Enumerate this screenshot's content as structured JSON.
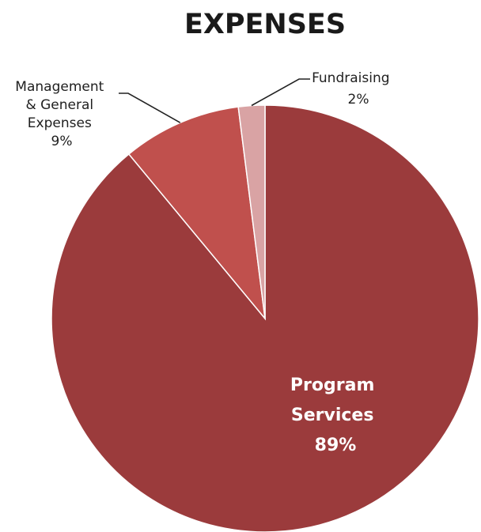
{
  "chart_data": {
    "type": "pie",
    "title": "EXPENSES",
    "slices": [
      {
        "label_lines": [
          "Program",
          "Services"
        ],
        "value": 89,
        "value_label": "89%",
        "color": "#9b3b3c",
        "label_style": "inside"
      },
      {
        "label_lines": [
          "Management",
          "& General",
          "Expenses"
        ],
        "value": 9,
        "value_label": "9%",
        "color": "#c0504d",
        "label_style": "callout"
      },
      {
        "label_lines": [
          "Fundraising"
        ],
        "value": 2,
        "value_label": "2%",
        "color": "#d9a3a4",
        "label_style": "callout"
      }
    ],
    "start_angle": "12 o'clock",
    "direction": "clockwise",
    "legend": "none"
  }
}
